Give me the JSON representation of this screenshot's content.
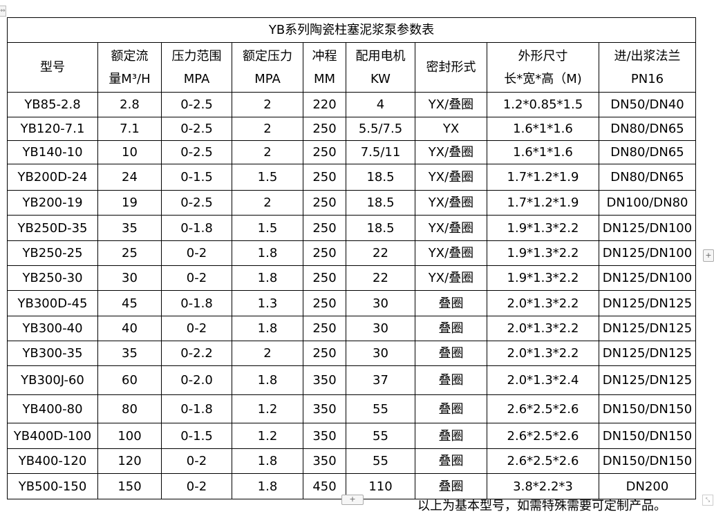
{
  "table": {
    "title": "YB系列陶瓷柱塞泥浆泵参数表",
    "headers": [
      [
        "型号"
      ],
      [
        "额定流",
        "量M³/H"
      ],
      [
        "压力范围",
        "MPA"
      ],
      [
        "额定压力",
        "MPA"
      ],
      [
        "冲程",
        "MM"
      ],
      [
        "配用电机",
        "KW"
      ],
      [
        "密封形式"
      ],
      [
        "外形尺寸",
        "长*宽*高（M)"
      ],
      [
        "进/出浆法兰",
        "PN16"
      ]
    ],
    "rows": [
      [
        "YB85-2.8",
        "2.8",
        "0-2.5",
        "2",
        "220",
        "4",
        "YX/叠圈",
        "1.2*0.85*1.5",
        "DN50/DN40"
      ],
      [
        "YB120-7.1",
        "7.1",
        "0-2.5",
        "2",
        "250",
        "5.5/7.5",
        "YX",
        "1.6*1*1.6",
        "DN80/DN65"
      ],
      [
        "YB140-10",
        "10",
        "0-2.5",
        "2",
        "250",
        "7.5/11",
        "YX/叠圈",
        "1.6*1*1.6",
        "DN80/DN65"
      ],
      [
        "YB200D-24",
        "24",
        "0-1.5",
        "1.5",
        "250",
        "18.5",
        "YX/叠圈",
        "1.7*1.2*1.9",
        "DN80/DN65"
      ],
      [
        "YB200-19",
        "19",
        "0-2.5",
        "2",
        "250",
        "18.5",
        "YX/叠圈",
        "1.7*1.2*1.9",
        "DN100/DN80"
      ],
      [
        "YB250D-35",
        "35",
        "0-1.8",
        "1.5",
        "250",
        "18.5",
        "YX/叠圈",
        "1.9*1.3*2.2",
        "DN125/DN100"
      ],
      [
        "YB250-25",
        "25",
        "0-2",
        "1.8",
        "250",
        "22",
        "YX/叠圈",
        "1.9*1.3*2.2",
        "DN125/DN100"
      ],
      [
        "YB250-30",
        "30",
        "0-2",
        "1.8",
        "250",
        "22",
        "YX/叠圈",
        "1.9*1.3*2.2",
        "DN125/DN100"
      ],
      [
        "YB300D-45",
        "45",
        "0-1.8",
        "1.3",
        "250",
        "30",
        "叠圈",
        "2.0*1.3*2.2",
        "DN125/DN125"
      ],
      [
        "YB300-40",
        "40",
        "0-2",
        "1.8",
        "250",
        "30",
        "叠圈",
        "2.0*1.3*2.2",
        "DN125/DN125"
      ],
      [
        "YB300-35",
        "35",
        "0-2.2",
        "2",
        "250",
        "30",
        "叠圈",
        "2.0*1.3*2.2",
        "DN125/DN125"
      ],
      [
        "YB300J-60",
        "60",
        "0-2.0",
        "1.8",
        "350",
        "37",
        "叠圈",
        "2.0*1.3*2.4",
        "DN125/DN125"
      ],
      [
        "YB400-80",
        "80",
        "0-1.8",
        "1.2",
        "350",
        "55",
        "叠圈",
        "2.6*2.5*2.6",
        "DN150/DN150"
      ],
      [
        "YB400D-100",
        "100",
        "0-1.5",
        "1.2",
        "350",
        "55",
        "叠圈",
        "2.6*2.5*2.6",
        "DN150/DN150"
      ],
      [
        "YB400-120",
        "120",
        "0-2",
        "1.8",
        "350",
        "55",
        "叠圈",
        "2.6*2.5*2.6",
        "DN150/DN150"
      ],
      [
        "YB500-150",
        "150",
        "0-2",
        "1.8",
        "450",
        "110",
        "叠圈",
        "3.8*2.2*3",
        "DN200"
      ]
    ]
  },
  "note": "以上为基本型号，如需特殊需要可定制产品。",
  "controls": {
    "add_row": "+",
    "add_column": "+",
    "move": "⇔",
    "resize": "⤡"
  }
}
